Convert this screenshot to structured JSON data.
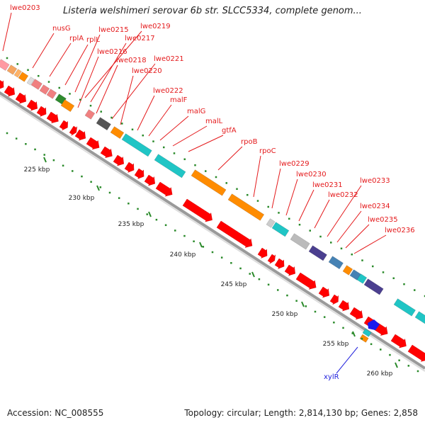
{
  "title": "Listeria welshimeri serovar 6b str. SLCC5334, complete genom...",
  "footer": {
    "accession": "Accession: NC_008555",
    "summary": "Topology: circular; Length: 2,814,130 bp; Genes: 2,858"
  },
  "colors": {
    "cds": "#ff0000",
    "label": "#e41a1c",
    "label_highlight": "#2222dd",
    "backbone": "#999999",
    "tick": "#2a8a2a"
  },
  "scale": {
    "unit": "kbp",
    "labels": [
      "225 kbp",
      "230 kbp",
      "235 kbp",
      "240 kbp",
      "245 kbp",
      "250 kbp",
      "255 kbp",
      "260 kbp"
    ]
  },
  "genes": [
    {
      "name": "lwe0203"
    },
    {
      "name": "nusG"
    },
    {
      "name": "rplA"
    },
    {
      "name": "rplL"
    },
    {
      "name": "lwe0215"
    },
    {
      "name": "lwe0219"
    },
    {
      "name": "lwe0217"
    },
    {
      "name": "lwe0216"
    },
    {
      "name": "lwe0218"
    },
    {
      "name": "lwe0221"
    },
    {
      "name": "lwe0220"
    },
    {
      "name": "lwe0222"
    },
    {
      "name": "malF"
    },
    {
      "name": "malG"
    },
    {
      "name": "malL"
    },
    {
      "name": "gtfA"
    },
    {
      "name": "rpoB"
    },
    {
      "name": "rpoC"
    },
    {
      "name": "lwe0229"
    },
    {
      "name": "lwe0230"
    },
    {
      "name": "lwe0231"
    },
    {
      "name": "lwe0233"
    },
    {
      "name": "lwe0232"
    },
    {
      "name": "lwe0234"
    },
    {
      "name": "lwe0235"
    },
    {
      "name": "lwe0236"
    },
    {
      "name": "xylR"
    }
  ]
}
